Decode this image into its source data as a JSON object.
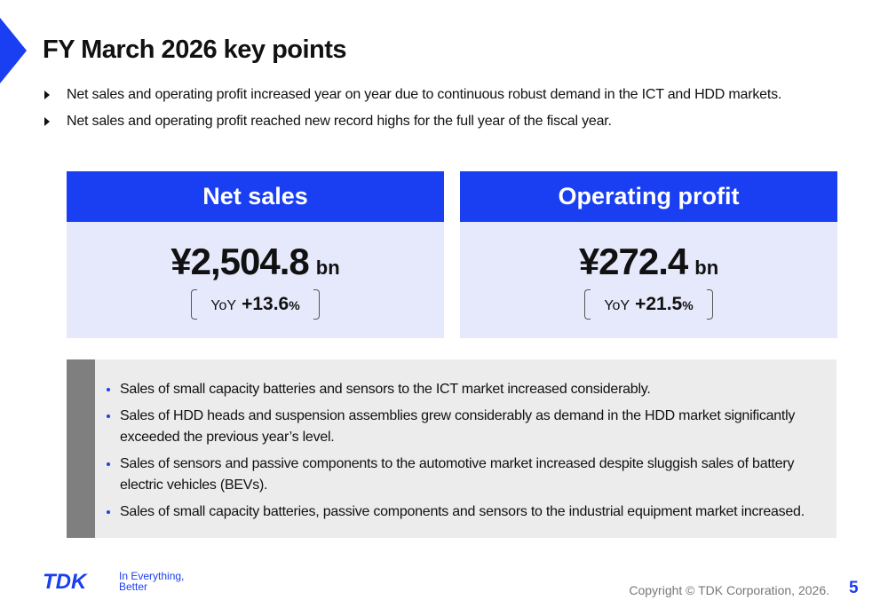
{
  "header": {
    "title": "FY March 2026 key points"
  },
  "highlights": [
    "Net sales and operating profit increased year on year due to continuous robust demand in the ICT and HDD markets.",
    "Net sales and operating profit reached new record highs for the full year of the fiscal year."
  ],
  "cards": [
    {
      "title": "Net sales",
      "value": "¥2,504.8",
      "unit": "bn",
      "yoy_label": "YoY",
      "yoy_value": "+13.6",
      "yoy_unit": "%"
    },
    {
      "title": "Operating profit",
      "value": "¥272.4",
      "unit": "bn",
      "yoy_label": "YoY",
      "yoy_value": "+21.5",
      "yoy_unit": "%"
    }
  ],
  "details": [
    "Sales of small capacity batteries and sensors to the ICT market increased considerably.",
    "Sales of HDD heads and suspension assemblies grew considerably as demand in the HDD market significantly exceeded the previous year’s level.",
    "Sales of sensors and passive components to the automotive market increased despite sluggish sales of battery electric vehicles (BEVs).",
    "Sales of small capacity batteries, passive components and sensors to the industrial equipment market increased."
  ],
  "footer": {
    "logo": "TDK",
    "tagline_1": "In Everything,",
    "tagline_2": "Better",
    "copyright": "Copyright  © TDK Corporation, 2026.",
    "page": "5"
  }
}
